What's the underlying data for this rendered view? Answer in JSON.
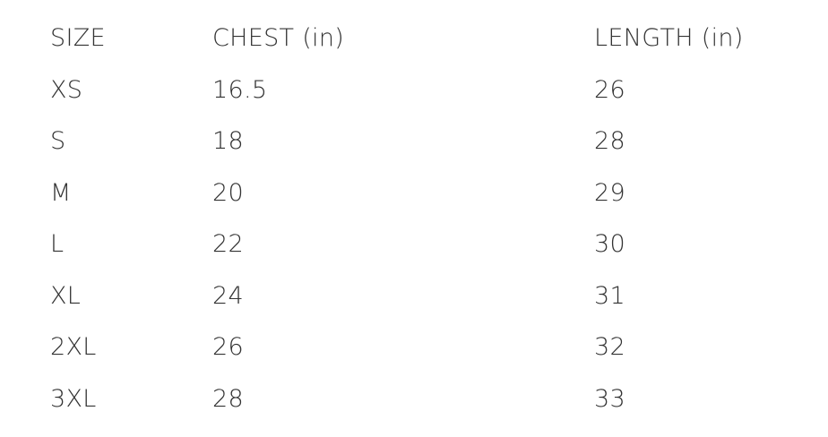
{
  "table": {
    "headers": [
      "SIZE",
      "CHEST (in)",
      "LENGTH (in)"
    ],
    "rows": [
      [
        "XS",
        "16.5",
        "26"
      ],
      [
        "S",
        "18",
        "28"
      ],
      [
        "M",
        "20",
        "29"
      ],
      [
        "L",
        "22",
        "30"
      ],
      [
        "XL",
        "24",
        "31"
      ],
      [
        "2XL",
        "26",
        "32"
      ],
      [
        "3XL",
        "28",
        "33"
      ]
    ]
  },
  "colors": {
    "text": "#333333",
    "background": "#ffffff"
  }
}
